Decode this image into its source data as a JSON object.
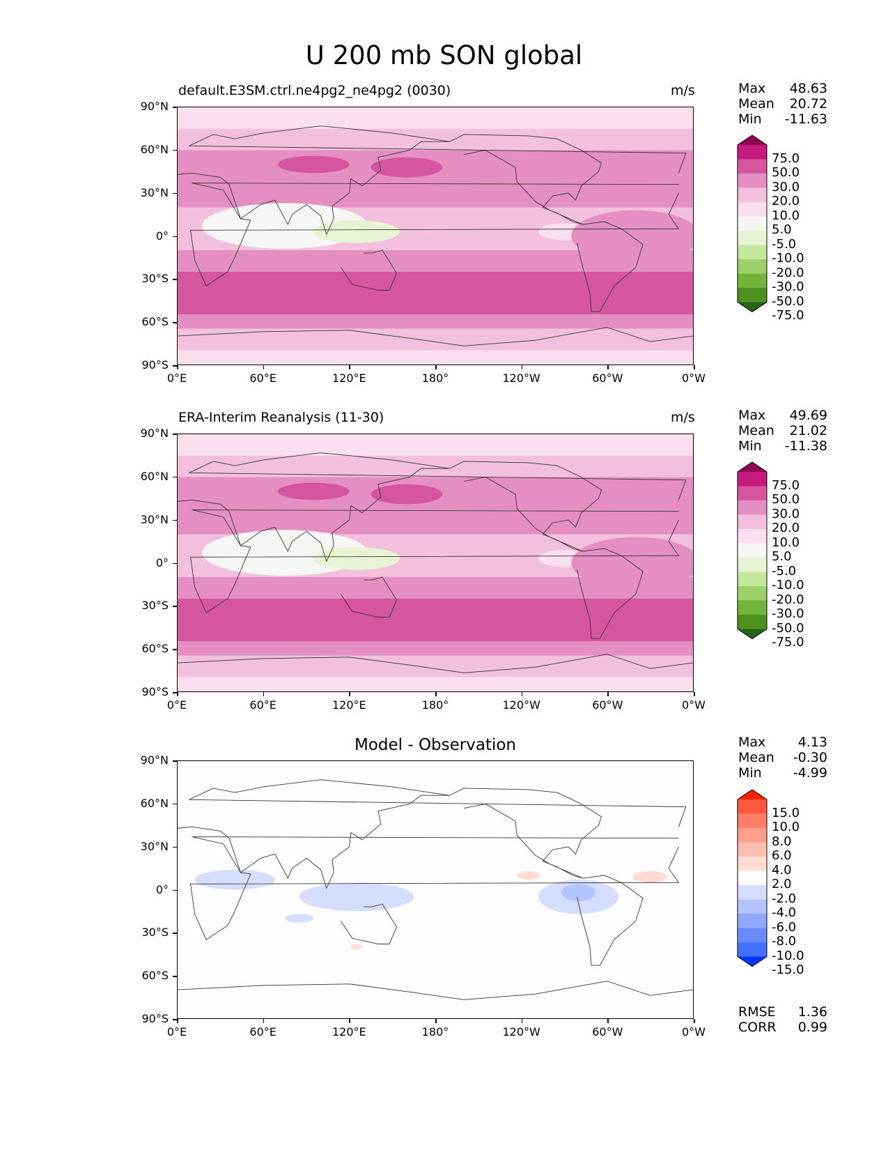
{
  "figure": {
    "title": "U 200 mb SON global"
  },
  "axes": {
    "lat_labels": [
      "90°N",
      "60°N",
      "30°N",
      "0°",
      "30°S",
      "60°S",
      "90°S"
    ],
    "lon_labels": [
      "0°E",
      "60°E",
      "120°E",
      "180°",
      "120°W",
      "60°W",
      "0°W"
    ]
  },
  "panels": [
    {
      "title": "default.E3SM.ctrl.ne4pg2_ne4pg2 (0030)",
      "units": "m/s",
      "stats": [
        {
          "label": "Max",
          "value": "48.63"
        },
        {
          "label": "Mean",
          "value": "20.72"
        },
        {
          "label": "Min",
          "value": "-11.63"
        }
      ]
    },
    {
      "title": "ERA-Interim Reanalysis (11-30)",
      "units": "m/s",
      "stats": [
        {
          "label": "Max",
          "value": "49.69"
        },
        {
          "label": "Mean",
          "value": "21.02"
        },
        {
          "label": "Min",
          "value": "-11.38"
        }
      ]
    },
    {
      "title": "Model - Observation",
      "units": "",
      "stats": [
        {
          "label": "Max",
          "value": "4.13"
        },
        {
          "label": "Mean",
          "value": "-0.30"
        },
        {
          "label": "Min",
          "value": "-4.99"
        }
      ],
      "metrics": [
        {
          "label": "RMSE",
          "value": "1.36"
        },
        {
          "label": "CORR",
          "value": "0.99"
        }
      ]
    }
  ],
  "colorbars": {
    "field": {
      "labels": [
        "75.0",
        "50.0",
        "30.0",
        "20.0",
        "10.0",
        "5.0",
        "-5.0",
        "-10.0",
        "-20.0",
        "-30.0",
        "-50.0",
        "-75.0"
      ],
      "colors": [
        "#8e0152",
        "#c51b7d",
        "#d6559f",
        "#e48ec1",
        "#f2bfdc",
        "#fae0ee",
        "#f6f6f4",
        "#e6f4d4",
        "#c5e69f",
        "#9dd067",
        "#72b33a",
        "#4d9221",
        "#276419"
      ]
    },
    "diff": {
      "labels": [
        "15.0",
        "10.0",
        "8.0",
        "6.0",
        "4.0",
        "2.0",
        "-2.0",
        "-4.0",
        "-6.0",
        "-8.0",
        "-10.0",
        "-15.0"
      ],
      "colors": [
        "#ff2200",
        "#ff5a40",
        "#ff7f66",
        "#ff9e8a",
        "#ffbfb0",
        "#ffdcd4",
        "#fefefe",
        "#d6defe",
        "#b4c4ff",
        "#8ea8ff",
        "#6a8cff",
        "#4470ff",
        "#0034ff"
      ]
    }
  },
  "map_data": {
    "field_zones": [
      {
        "lat_from": 90,
        "lat_to": 75,
        "value": 8
      },
      {
        "lat_from": 75,
        "lat_to": 60,
        "value": 15
      },
      {
        "lat_from": 60,
        "lat_to": 40,
        "value": 25
      },
      {
        "lat_from": 40,
        "lat_to": 20,
        "value": 20
      },
      {
        "lat_from": 20,
        "lat_to": -10,
        "value": 10
      },
      {
        "lat_from": -10,
        "lat_to": -25,
        "value": 20
      },
      {
        "lat_from": -25,
        "lat_to": -55,
        "value": 40
      },
      {
        "lat_from": -55,
        "lat_to": -65,
        "value": 25
      },
      {
        "lat_from": -65,
        "lat_to": -80,
        "value": 15
      },
      {
        "lat_from": -80,
        "lat_to": -90,
        "value": 5
      }
    ],
    "field_features": [
      {
        "lon": 75,
        "lat": 7,
        "rx": 58,
        "ry": 16,
        "value": 0
      },
      {
        "lon": 125,
        "lat": 3,
        "rx": 30,
        "ry": 8,
        "value": -6
      },
      {
        "lon": 95,
        "lat": 50,
        "rx": 25,
        "ry": 6,
        "value": 40
      },
      {
        "lon": 160,
        "lat": 48,
        "rx": 25,
        "ry": 7,
        "value": 40
      },
      {
        "lon": 270,
        "lat": 3,
        "rx": 18,
        "ry": 6,
        "value": 8
      },
      {
        "lon": 320,
        "lat": 0,
        "rx": 45,
        "ry": 18,
        "value": 25
      }
    ],
    "diff_features": [
      {
        "lon": 40,
        "lat": 7,
        "rx": 28,
        "ry": 7,
        "value": -3
      },
      {
        "lon": 125,
        "lat": -5,
        "rx": 40,
        "ry": 10,
        "value": -3
      },
      {
        "lon": 280,
        "lat": -5,
        "rx": 28,
        "ry": 12,
        "value": -3
      },
      {
        "lon": 280,
        "lat": -2,
        "rx": 12,
        "ry": 6,
        "value": -5
      },
      {
        "lon": 85,
        "lat": -20,
        "rx": 10,
        "ry": 3,
        "value": -3
      },
      {
        "lon": 330,
        "lat": 9,
        "rx": 12,
        "ry": 4,
        "value": 3
      },
      {
        "lon": 245,
        "lat": 10,
        "rx": 8,
        "ry": 3,
        "value": 3
      },
      {
        "lon": 125,
        "lat": -40,
        "rx": 4,
        "ry": 2,
        "value": 3
      }
    ]
  }
}
